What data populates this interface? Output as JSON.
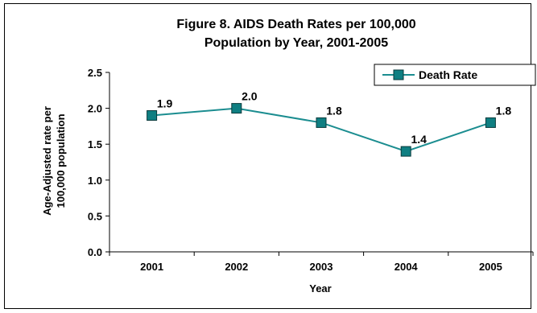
{
  "chart_data": {
    "type": "line",
    "title_lines": [
      "Figure 8. AIDS Death Rates per 100,000",
      "Population by Year, 2001-2005"
    ],
    "xlabel": "Year",
    "ylabel_lines": [
      "Age-Adjusted rate per",
      "100,000 population"
    ],
    "categories": [
      "2001",
      "2002",
      "2003",
      "2004",
      "2005"
    ],
    "ylim": [
      0,
      2.5
    ],
    "yticks": [
      "0.0",
      "0.5",
      "1.0",
      "1.5",
      "2.0",
      "2.5"
    ],
    "grid": false,
    "legend_position": "top-right",
    "series": [
      {
        "name": "Death Rate",
        "values": [
          1.9,
          2.0,
          1.8,
          1.4,
          1.8
        ],
        "labels": [
          "1.9",
          "2.0",
          "1.8",
          "1.4",
          "1.8"
        ],
        "color": "#0f7f82",
        "marker_color": "#0f7f82",
        "line_color": "#1b8d90"
      }
    ]
  }
}
